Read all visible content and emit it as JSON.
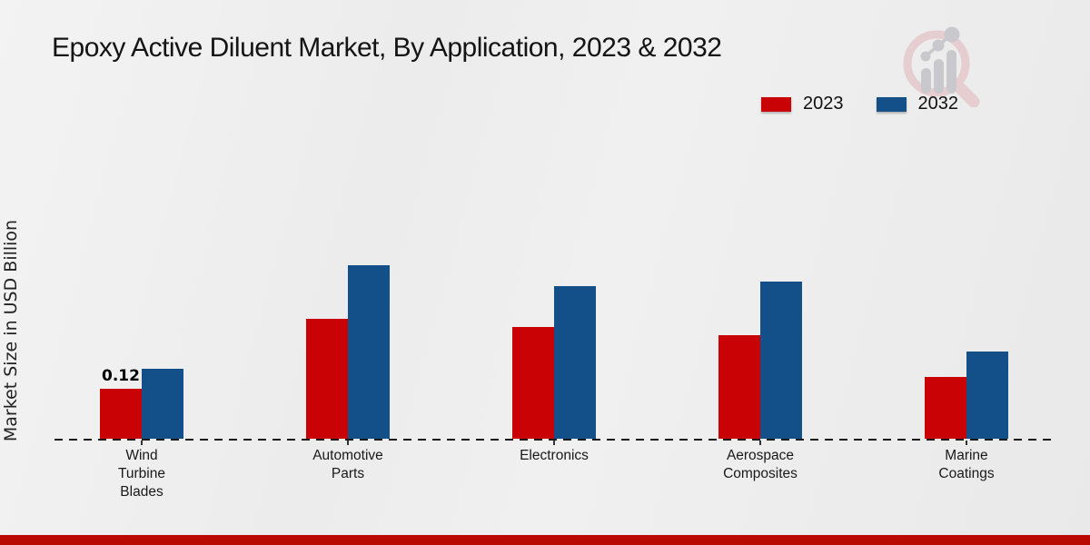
{
  "title": "Epoxy Active Diluent Market, By Application, 2023 & 2032",
  "y_axis_label": "Market Size in USD Billion",
  "legend": {
    "items": [
      {
        "label": "2023",
        "color": "#c90305"
      },
      {
        "label": "2032",
        "color": "#135089"
      }
    ]
  },
  "chart_data": {
    "type": "bar",
    "title": "Epoxy Active Diluent Market, By Application, 2023 & 2032",
    "xlabel": "",
    "ylabel": "Market Size in USD Billion",
    "unit": "USD Billion",
    "categories": [
      "Wind Turbine Blades",
      "Automotive Parts",
      "Electronics",
      "Aerospace Composites",
      "Marine Coatings"
    ],
    "category_lines": [
      [
        "Wind",
        "Turbine",
        "Blades"
      ],
      [
        "Automotive",
        "Parts"
      ],
      [
        "Electronics"
      ],
      [
        "Aerospace",
        "Composites"
      ],
      [
        "Marine",
        "Coatings"
      ]
    ],
    "series": [
      {
        "name": "2023",
        "color": "#c90305",
        "values": [
          0.12,
          0.29,
          0.27,
          0.25,
          0.15
        ]
      },
      {
        "name": "2032",
        "color": "#135089",
        "values": [
          0.17,
          0.42,
          0.37,
          0.38,
          0.21
        ]
      }
    ],
    "data_labels": [
      {
        "series": "2023",
        "category_index": 0,
        "text": "0.12"
      }
    ],
    "axis": {
      "baseline": "dashed",
      "ylim": [
        0,
        0.46
      ],
      "gridlines": false
    },
    "legend_position": "top-right"
  },
  "colors": {
    "bar_2023": "#c90305",
    "bar_2032": "#135089",
    "footer_bar": "#b90a01",
    "baseline": "#1a1a1a",
    "background": "#ececec",
    "logo_ring": "#e5cdd0",
    "logo_gray": "#c9c9cd"
  }
}
